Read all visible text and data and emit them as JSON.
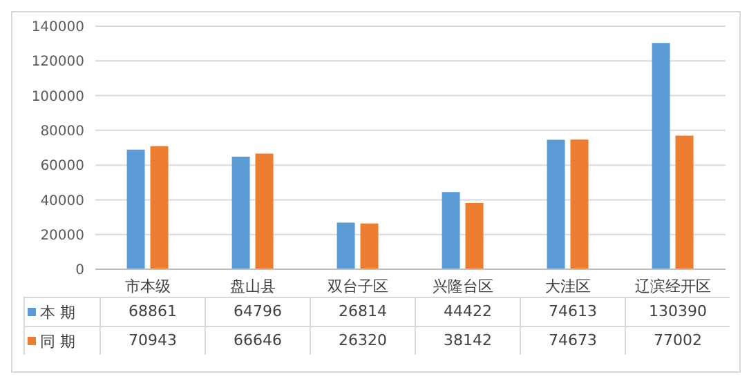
{
  "chart_data": {
    "type": "bar",
    "categories": [
      "市本级",
      "盘山县",
      "双台子区",
      "兴隆台区",
      "大洼区",
      "辽滨经开区"
    ],
    "series": [
      {
        "name": "本 期",
        "color": "#5b9bd5",
        "values": [
          68861,
          64796,
          26814,
          44422,
          74613,
          130390
        ]
      },
      {
        "name": "同 期",
        "color": "#ed7d31",
        "values": [
          70943,
          66646,
          26320,
          38142,
          74673,
          77002
        ]
      }
    ],
    "ylim": [
      0,
      140000
    ],
    "yticks": [
      0,
      20000,
      40000,
      60000,
      80000,
      100000,
      120000,
      140000
    ],
    "grid": "y",
    "legend": "bottom",
    "data_labels": true
  }
}
